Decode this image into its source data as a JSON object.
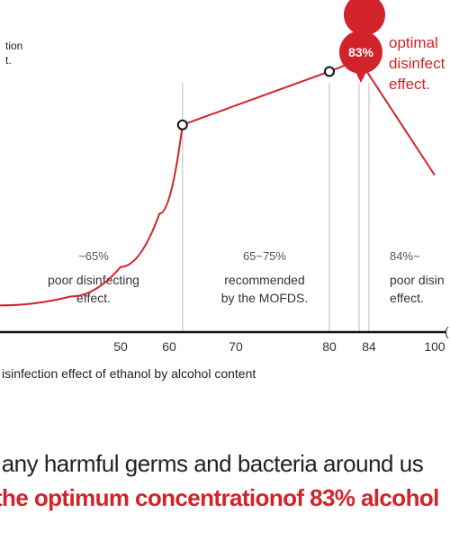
{
  "chart_data": {
    "type": "line",
    "ylabel_partial": "tion\nt.",
    "caption": "isinfection effect of ethanol by alcohol content",
    "x_ticks": [
      "50",
      "60",
      "70",
      "80",
      "84",
      "100"
    ],
    "x_axis_end_marker": "(",
    "xlim": [
      26,
      100
    ],
    "ylim": [
      0,
      100
    ],
    "series": [
      {
        "color": "#d2232a",
        "points": [
          {
            "x": 26,
            "y": 9
          },
          {
            "x": 40,
            "y": 12
          },
          {
            "x": 50,
            "y": 22
          },
          {
            "x": 58,
            "y": 40
          },
          {
            "x": 62,
            "y": 70
          },
          {
            "x": 80,
            "y": 88
          },
          {
            "x": 83,
            "y": 92
          },
          {
            "x": 100,
            "y": 53
          }
        ]
      }
    ],
    "markers": [
      {
        "x": 62,
        "y": 70,
        "style": "open"
      },
      {
        "x": 80,
        "y": 88,
        "style": "open"
      },
      {
        "x": 83,
        "y": 92,
        "style": "highlight"
      }
    ],
    "vlines": [
      62,
      80,
      83,
      84
    ],
    "regions": [
      {
        "range": "~65%",
        "label_line1": "poor disinfecting",
        "label_line2": "effect."
      },
      {
        "range": "65~75%",
        "label_line1": "recommended",
        "label_line2": "by the MOFDS."
      },
      {
        "range": "84%~",
        "label_line1": "poor disin",
        "label_line2": "effect."
      }
    ],
    "optimal": {
      "pin_value": "83%",
      "label_line1": "optimal",
      "label_line2": "disinfect",
      "label_line3": "effect."
    }
  },
  "text": {
    "line1": "ff any harmful germs and bacteria around us",
    "line2": "the optimum concentrationof 83% alcohol"
  },
  "colors": {
    "accent": "#d2232a",
    "text": "#222222",
    "grid": "#bbbbbb"
  }
}
